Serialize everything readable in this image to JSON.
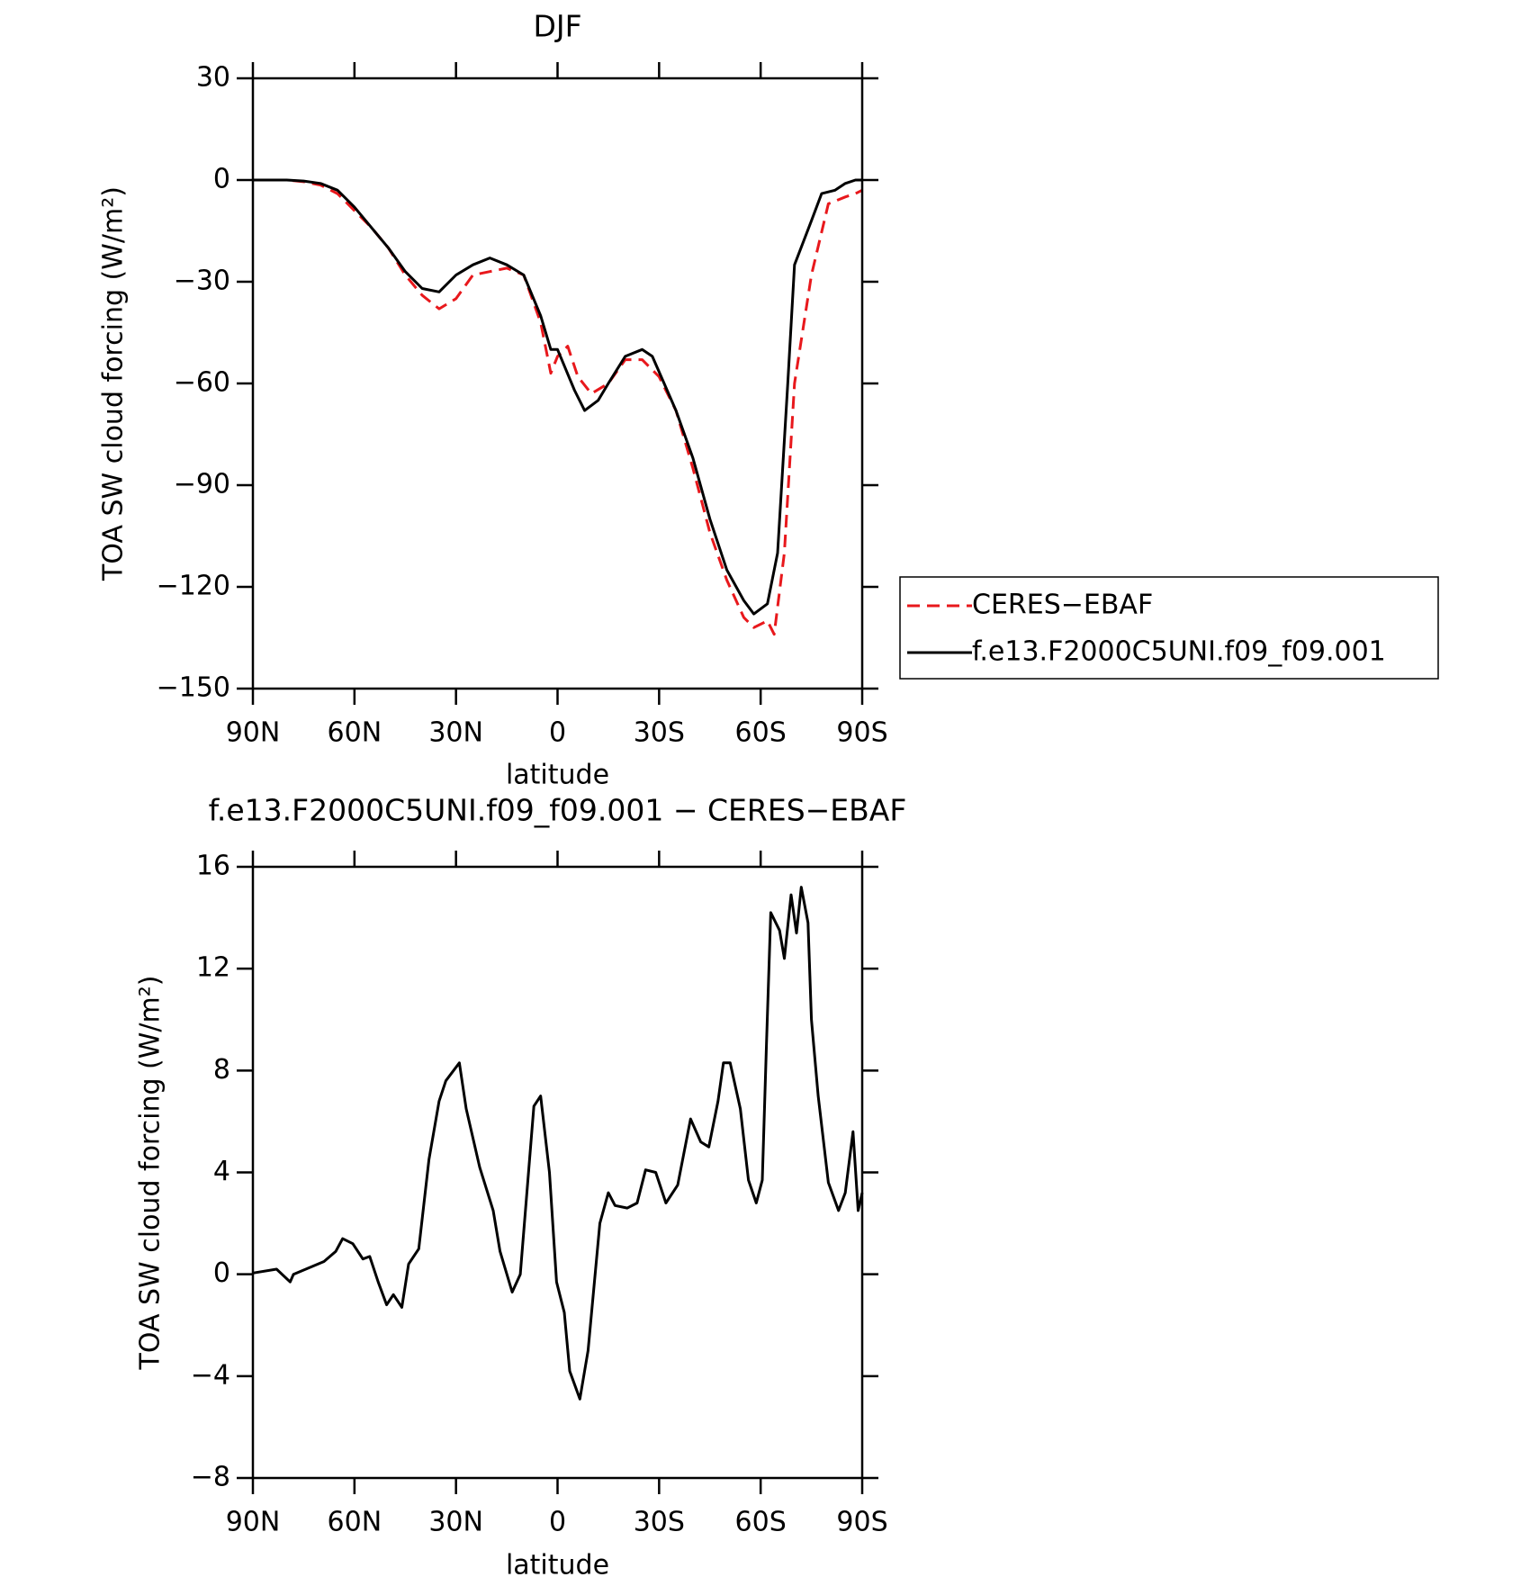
{
  "chart_data": [
    {
      "type": "line",
      "title": "DJF",
      "x_label": "latitude",
      "y_label": "TOA SW cloud forcing (W/m²)",
      "xlim": [
        90,
        -90
      ],
      "ylim": [
        -150,
        30
      ],
      "xticks": [
        {
          "value": 90,
          "label": "90N"
        },
        {
          "value": 60,
          "label": "60N"
        },
        {
          "value": 30,
          "label": "30N"
        },
        0,
        {
          "value": -30,
          "label": "30S"
        },
        {
          "value": -60,
          "label": "60S"
        },
        {
          "value": -90,
          "label": "90S"
        }
      ],
      "yticks": [
        30,
        0,
        {
          "value": -30,
          "label": "−30"
        },
        {
          "value": -60,
          "label": "−60"
        },
        {
          "value": -90,
          "label": "−90"
        },
        {
          "value": -120,
          "label": "−120"
        },
        {
          "value": -150,
          "label": "−150"
        }
      ],
      "legend": "right",
      "series": [
        {
          "name": "CERES−EBAF",
          "color": "#e8181c",
          "dash": true,
          "x": [
            90,
            85,
            80,
            75,
            70,
            65,
            60,
            55,
            50,
            45,
            40,
            35,
            30,
            25,
            20,
            15,
            10,
            5,
            2,
            0,
            -3,
            -6,
            -10,
            -15,
            -20,
            -25,
            -30,
            -35,
            -40,
            -45,
            -50,
            -55,
            -58,
            -62,
            -64,
            -67,
            -70,
            -75,
            -80,
            -85,
            -88,
            -90
          ],
          "values": [
            0,
            0,
            0,
            -0.5,
            -1.5,
            -4,
            -9,
            -14,
            -20,
            -28,
            -34,
            -38,
            -35,
            -28,
            -27,
            -26,
            -28,
            -42,
            -57,
            -52,
            -49,
            -58,
            -63,
            -60,
            -53,
            -53,
            -58,
            -68,
            -85,
            -104,
            -118,
            -129,
            -132,
            -130,
            -134,
            -110,
            -60,
            -28,
            -7,
            -5,
            -4,
            -3
          ]
        },
        {
          "name": "f.e13.F2000C5UNI.f09_f09.001",
          "color": "#000000",
          "dash": false,
          "x": [
            90,
            85,
            80,
            75,
            70,
            65,
            60,
            55,
            50,
            45,
            40,
            35,
            30,
            25,
            20,
            15,
            10,
            5,
            2,
            0,
            -5,
            -8,
            -12,
            -15,
            -20,
            -25,
            -28,
            -35,
            -40,
            -45,
            -50,
            -55,
            -58,
            -62,
            -65,
            -68,
            -70,
            -75,
            -78,
            -82,
            -85,
            -88,
            -90
          ],
          "values": [
            0,
            0,
            0,
            -0.3,
            -1,
            -3,
            -8,
            -14,
            -20,
            -27,
            -32,
            -33,
            -28,
            -25,
            -23,
            -25,
            -28,
            -40,
            -50,
            -50,
            -62,
            -68,
            -65,
            -60,
            -52,
            -50,
            -52,
            -68,
            -82,
            -100,
            -115,
            -124,
            -128,
            -125,
            -110,
            -60,
            -25,
            -12,
            -4,
            -3,
            -1,
            0,
            0
          ]
        }
      ]
    },
    {
      "type": "line",
      "title": "f.e13.F2000C5UNI.f09_f09.001 − CERES−EBAF",
      "x_label": "latitude",
      "y_label": "TOA SW cloud forcing (W/m²)",
      "xlim": [
        90,
        -90
      ],
      "ylim": [
        -8,
        16
      ],
      "xticks": [
        {
          "value": 90,
          "label": "90N"
        },
        {
          "value": 60,
          "label": "60N"
        },
        {
          "value": 30,
          "label": "30N"
        },
        0,
        {
          "value": -30,
          "label": "30S"
        },
        {
          "value": -60,
          "label": "60S"
        },
        {
          "value": -90,
          "label": "90S"
        }
      ],
      "yticks": [
        16,
        12,
        8,
        4,
        0,
        {
          "value": -4,
          "label": "−4"
        },
        {
          "value": -8,
          "label": "−8"
        }
      ],
      "series": [
        {
          "color": "#000000",
          "dash": false,
          "x": [
            90,
            83,
            79,
            78,
            69,
            65.5,
            63.5,
            60.5,
            57.5,
            55.5,
            53,
            50.5,
            48.5,
            46,
            44,
            41,
            38,
            35,
            33,
            29,
            27,
            23,
            19,
            17,
            13.4,
            11,
            7,
            5,
            2.4,
            0.3,
            -2,
            -3.6,
            -6.6,
            -9,
            -12.5,
            -15,
            -17,
            -20.6,
            -23.5,
            -26,
            -29,
            -32,
            -35.5,
            -39.3,
            -42.3,
            -44.7,
            -47.4,
            -49,
            -51,
            -54,
            -56.4,
            -58.7,
            -60.5,
            -61.7,
            -63,
            -65.6,
            -67,
            -69,
            -70.6,
            -72,
            -74,
            -75,
            -77,
            -80,
            -83,
            -85,
            -87.3,
            -88.8,
            -90
          ],
          "values": [
            0.05,
            0.2,
            -0.3,
            0,
            0.5,
            0.9,
            1.4,
            1.2,
            0.6,
            0.7,
            -0.3,
            -1.2,
            -0.8,
            -1.3,
            0.4,
            1,
            4.5,
            6.8,
            7.6,
            8.3,
            6.5,
            4.2,
            2.5,
            0.9,
            -0.7,
            0,
            6.6,
            7,
            4,
            -0.3,
            -1.5,
            -3.8,
            -4.9,
            -3,
            2,
            3.2,
            2.7,
            2.6,
            2.8,
            4.1,
            4,
            2.8,
            3.5,
            6.1,
            5.2,
            5,
            6.8,
            8.3,
            8.3,
            6.5,
            3.7,
            2.8,
            3.7,
            9,
            14.2,
            13.5,
            12.4,
            14.9,
            13.4,
            15.2,
            13.8,
            10,
            7,
            3.6,
            2.5,
            3.2,
            5.6,
            2.5,
            3.2
          ]
        }
      ]
    }
  ]
}
